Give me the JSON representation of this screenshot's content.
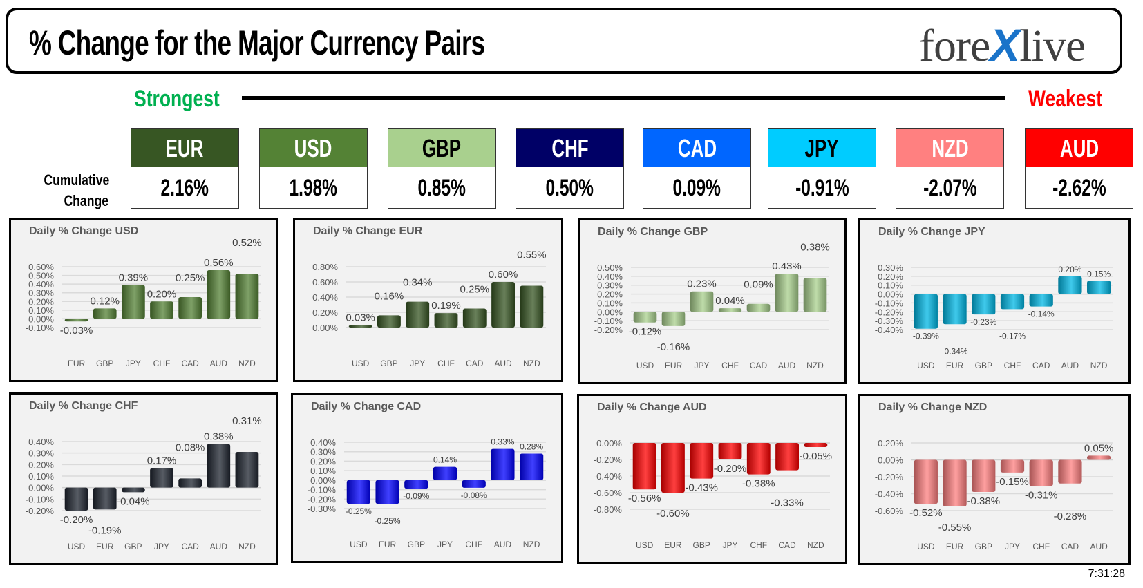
{
  "header": {
    "title": "% Change for the Major Currency Pairs",
    "logo": {
      "part1": "fore",
      "x": "X",
      "part2": "live"
    }
  },
  "scale": {
    "strongest": "Strongest",
    "weakest": "Weakest",
    "strongest_color": "#00b050",
    "weakest_color": "#ff0000"
  },
  "cumulative": {
    "label_line1": "Cumulative",
    "label_line2": "Change",
    "currencies": [
      {
        "code": "EUR",
        "value": "2.16%",
        "bg": "#375623",
        "fg": "#ffffff"
      },
      {
        "code": "USD",
        "value": "1.98%",
        "bg": "#548235",
        "fg": "#ffffff"
      },
      {
        "code": "GBP",
        "value": "0.85%",
        "bg": "#a9d08e",
        "fg": "#000000"
      },
      {
        "code": "CHF",
        "value": "0.50%",
        "bg": "#000066",
        "fg": "#ffffff"
      },
      {
        "code": "CAD",
        "value": "0.09%",
        "bg": "#0066ff",
        "fg": "#ffffff"
      },
      {
        "code": "JPY",
        "value": "-0.91%",
        "bg": "#00ccff",
        "fg": "#000000"
      },
      {
        "code": "NZD",
        "value": "-2.07%",
        "bg": "#ff8080",
        "fg": "#ffffff"
      },
      {
        "code": "AUD",
        "value": "-2.62%",
        "bg": "#ff0000",
        "fg": "#ffffff"
      }
    ]
  },
  "chart_data": [
    {
      "type": "bar",
      "title": "Daily % Change USD",
      "categories": [
        "EUR",
        "GBP",
        "JPY",
        "CHF",
        "CAD",
        "AUD",
        "NZD"
      ],
      "values": [
        -0.03,
        0.12,
        0.39,
        0.2,
        0.25,
        0.56,
        0.52
      ],
      "value_labels": [
        "-0.03%",
        "0.12%",
        "0.39%",
        "0.20%",
        "0.25%",
        "0.56%",
        "0.52%"
      ],
      "ylim": [
        -0.1,
        0.6
      ],
      "yticks": [
        -0.1,
        0.0,
        0.1,
        0.2,
        0.3,
        0.4,
        0.5,
        0.6
      ],
      "tick_labels": [
        "-0.10%",
        "0.00%",
        "0.10%",
        "0.20%",
        "0.30%",
        "0.40%",
        "0.50%",
        "0.60%"
      ],
      "color": "#548235",
      "grid": true
    },
    {
      "type": "bar",
      "title": "Daily % Change EUR",
      "categories": [
        "USD",
        "GBP",
        "JPY",
        "CHF",
        "CAD",
        "AUD",
        "NZD"
      ],
      "values": [
        0.03,
        0.16,
        0.34,
        0.19,
        0.25,
        0.6,
        0.55
      ],
      "value_labels": [
        "0.03%",
        "0.16%",
        "0.34%",
        "0.19%",
        "0.25%",
        "0.60%",
        "0.55%"
      ],
      "ylim": [
        0.0,
        0.8
      ],
      "yticks": [
        0.0,
        0.2,
        0.4,
        0.6,
        0.8
      ],
      "tick_labels": [
        "0.00%",
        "0.20%",
        "0.40%",
        "0.60%",
        "0.80%"
      ],
      "color": "#375623",
      "grid": true
    },
    {
      "type": "bar",
      "title": "Daily % Change GBP",
      "categories": [
        "USD",
        "EUR",
        "JPY",
        "CHF",
        "CAD",
        "AUD",
        "NZD"
      ],
      "values": [
        -0.12,
        -0.16,
        0.23,
        0.04,
        0.09,
        0.43,
        0.38
      ],
      "value_labels": [
        "-0.12%",
        "-0.16%",
        "0.23%",
        "0.04%",
        "0.09%",
        "0.43%",
        "0.38%"
      ],
      "ylim": [
        -0.2,
        0.5
      ],
      "yticks": [
        -0.2,
        -0.1,
        0.0,
        0.1,
        0.2,
        0.3,
        0.4,
        0.5
      ],
      "tick_labels": [
        "-0.20%",
        "-0.10%",
        "0.00%",
        "0.10%",
        "0.20%",
        "0.30%",
        "0.40%",
        "0.50%"
      ],
      "color": "#a9d08e",
      "grid": true
    },
    {
      "type": "bar",
      "title": "Daily % Change JPY",
      "categories": [
        "USD",
        "EUR",
        "GBP",
        "CHF",
        "CAD",
        "AUD",
        "NZD"
      ],
      "values": [
        -0.39,
        -0.34,
        -0.23,
        -0.17,
        -0.14,
        0.2,
        0.15
      ],
      "value_labels": [
        "-0.39%",
        "-0.34%",
        "-0.23%",
        "-0.17%",
        "-0.14%",
        "0.20%",
        "0.15%"
      ],
      "ylim": [
        -0.4,
        0.3
      ],
      "yticks": [
        -0.4,
        -0.3,
        -0.2,
        -0.1,
        0.0,
        0.1,
        0.2,
        0.3
      ],
      "tick_labels": [
        "-0.40%",
        "-0.30%",
        "-0.20%",
        "-0.10%",
        "0.00%",
        "0.10%",
        "0.20%",
        "0.30%"
      ],
      "color": "#00b8e6",
      "grid": true
    },
    {
      "type": "bar",
      "title": "Daily % Change CHF",
      "categories": [
        "USD",
        "EUR",
        "GBP",
        "JPY",
        "CAD",
        "AUD",
        "NZD"
      ],
      "values": [
        -0.2,
        -0.19,
        -0.04,
        0.17,
        0.08,
        0.38,
        0.31
      ],
      "value_labels": [
        "-0.20%",
        "-0.19%",
        "-0.04%",
        "0.17%",
        "0.08%",
        "0.38%",
        "0.31%"
      ],
      "ylim": [
        -0.2,
        0.4
      ],
      "yticks": [
        -0.2,
        -0.1,
        0.0,
        0.1,
        0.2,
        0.3,
        0.4
      ],
      "tick_labels": [
        "-0.20%",
        "-0.10%",
        "0.00%",
        "0.10%",
        "0.20%",
        "0.30%",
        "0.40%"
      ],
      "color": "#1f2530",
      "grid": true
    },
    {
      "type": "bar",
      "title": "Daily % Change CAD",
      "categories": [
        "USD",
        "EUR",
        "GBP",
        "JPY",
        "CHF",
        "AUD",
        "NZD"
      ],
      "values": [
        -0.25,
        -0.25,
        -0.09,
        0.14,
        -0.08,
        0.33,
        0.28
      ],
      "value_labels": [
        "-0.25%",
        "-0.25%",
        "-0.09%",
        "0.14%",
        "-0.08%",
        "0.33%",
        "0.28%"
      ],
      "ylim": [
        -0.3,
        0.4
      ],
      "yticks": [
        -0.3,
        -0.2,
        -0.1,
        0.0,
        0.1,
        0.2,
        0.3,
        0.4
      ],
      "tick_labels": [
        "-0.30%",
        "-0.20%",
        "-0.10%",
        "0.00%",
        "0.10%",
        "0.20%",
        "0.30%",
        "0.40%"
      ],
      "color": "#0000ff",
      "grid": true
    },
    {
      "type": "bar",
      "title": "Daily % Change AUD",
      "categories": [
        "USD",
        "EUR",
        "GBP",
        "JPY",
        "CHF",
        "CAD",
        "NZD"
      ],
      "values": [
        -0.56,
        -0.6,
        -0.43,
        -0.2,
        -0.38,
        -0.33,
        -0.05
      ],
      "value_labels": [
        "-0.56%",
        "-0.60%",
        "-0.43%",
        "-0.20%",
        "-0.38%",
        "-0.33%",
        "-0.05%"
      ],
      "ylim": [
        -0.8,
        0.0
      ],
      "yticks": [
        -0.8,
        -0.6,
        -0.4,
        -0.2,
        0.0
      ],
      "tick_labels": [
        "-0.80%",
        "-0.60%",
        "-0.40%",
        "-0.20%",
        "0.00%"
      ],
      "color": "#ff0000",
      "grid": true
    },
    {
      "type": "bar",
      "title": "Daily % Change NZD",
      "categories": [
        "USD",
        "EUR",
        "GBP",
        "JPY",
        "CHF",
        "CAD",
        "AUD"
      ],
      "values": [
        -0.52,
        -0.55,
        -0.38,
        -0.15,
        -0.31,
        -0.28,
        0.05
      ],
      "value_labels": [
        "-0.52%",
        "-0.55%",
        "-0.38%",
        "-0.15%",
        "-0.31%",
        "-0.28%",
        "0.05%"
      ],
      "ylim": [
        -0.6,
        0.2
      ],
      "yticks": [
        -0.6,
        -0.4,
        -0.2,
        0.0,
        0.2
      ],
      "tick_labels": [
        "-0.60%",
        "-0.40%",
        "-0.20%",
        "0.00%",
        "0.20%"
      ],
      "color": "#ff8080",
      "grid": true
    }
  ],
  "timestamp": "7:31:28"
}
